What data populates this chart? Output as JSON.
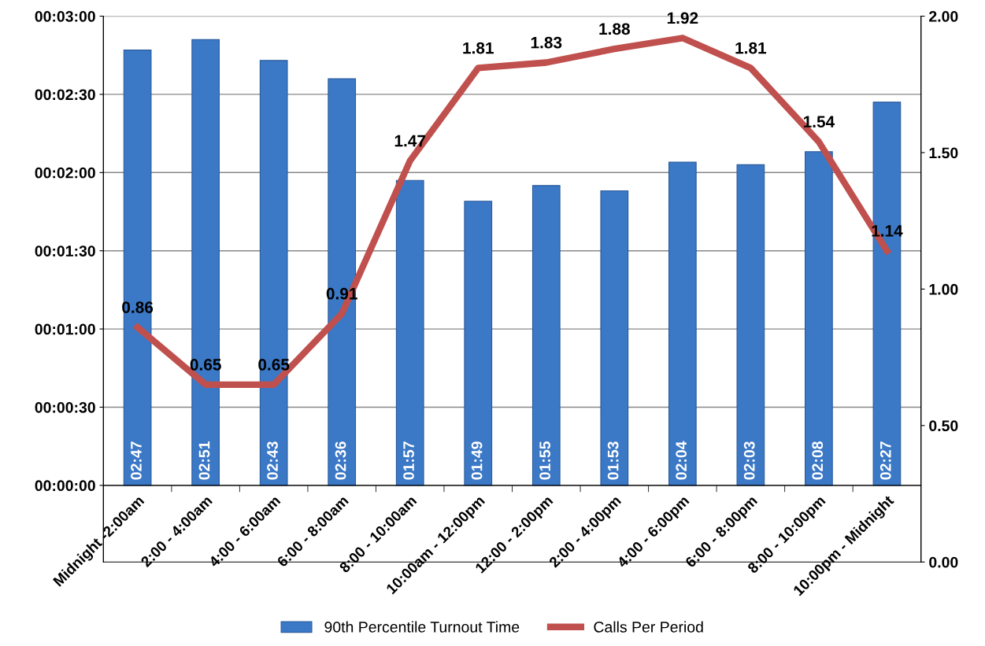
{
  "chart_data": {
    "type": "bar",
    "categories": [
      "Midnight -2:00am",
      "2:00 - 4:00am",
      "4:00 - 6:00am",
      "6:00 - 8:00am",
      "8:00 - 10:00am",
      "10:00am - 12:00pm",
      "12:00 - 2:00pm",
      "2:00 - 4:00pm",
      "4:00 - 6:00pm",
      "6:00 - 8:00pm",
      "8:00 - 10:00pm",
      "10:00pm - Midnight"
    ],
    "series": [
      {
        "name": "90th Percentile Turnout Time",
        "color": "#3b78c6",
        "values": [
          167,
          171,
          163,
          156,
          117,
          109,
          115,
          113,
          124,
          123,
          128,
          147
        ],
        "value_labels": [
          "02:47",
          "02:51",
          "02:43",
          "02:36",
          "01:57",
          "01:49",
          "01:55",
          "01:53",
          "02:04",
          "02:03",
          "02:08",
          "02:27"
        ]
      },
      {
        "name": "Calls Per Period",
        "type": "line",
        "axis": "y2",
        "color": "#c0504d",
        "values": [
          0.86,
          0.65,
          0.65,
          0.91,
          1.47,
          1.81,
          1.83,
          1.88,
          1.92,
          1.81,
          1.54,
          1.14
        ],
        "data_labels": true
      }
    ],
    "ylim": [
      -29.4,
      180
    ],
    "yticks": [
      {
        "value": 0,
        "label": "00:00:00"
      },
      {
        "value": 30,
        "label": "00:00:30"
      },
      {
        "value": 60,
        "label": "00:01:00"
      },
      {
        "value": 90,
        "label": "00:01:30"
      },
      {
        "value": 120,
        "label": "00:02:00"
      },
      {
        "value": 150,
        "label": "00:02:30"
      },
      {
        "value": 180,
        "label": "00:03:00"
      }
    ],
    "y2lim": [
      0,
      2
    ],
    "y2ticks": [
      {
        "value": 0,
        "label": "0.00"
      },
      {
        "value": 0.5,
        "label": "0.50"
      },
      {
        "value": 1,
        "label": "1.00"
      },
      {
        "value": 1.5,
        "label": "1.50"
      },
      {
        "value": 2,
        "label": "2.00"
      }
    ],
    "grid": "y",
    "legend": "bottom",
    "marker": "none",
    "line_style": "solid"
  }
}
